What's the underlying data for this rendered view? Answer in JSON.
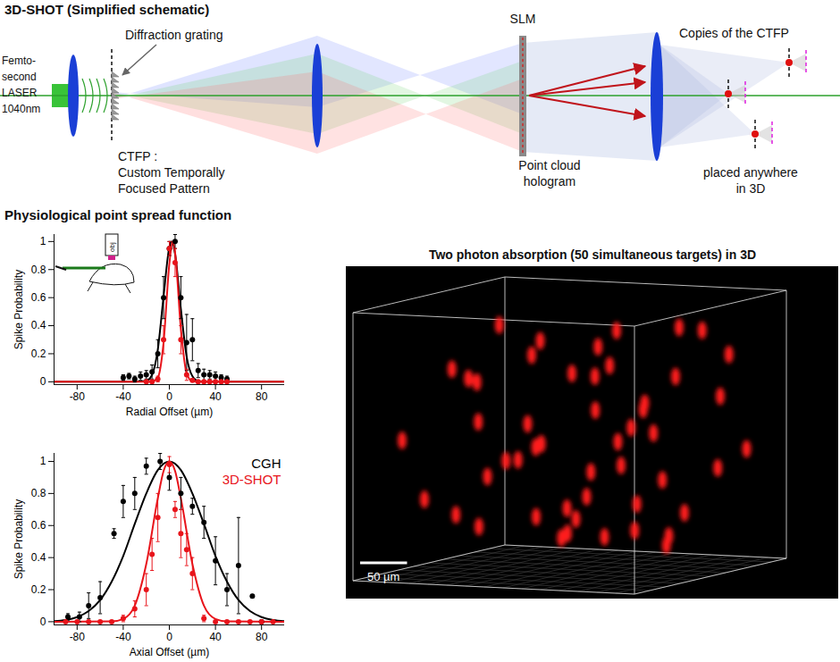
{
  "schematic": {
    "title": "3D-SHOT (Simplified schematic)",
    "laser": [
      "Femto-",
      "second",
      "LASER",
      "1040nm"
    ],
    "grating": "Diffraction grating",
    "ctfp": [
      "CTFP :",
      "Custom Temporally",
      "Focused Pattern"
    ],
    "slm": "SLM",
    "hologram": [
      "Point cloud",
      "hologram"
    ],
    "copies": "Copies of the CTFP",
    "placed": [
      "placed anywhere",
      "in 3D"
    ]
  },
  "section_title": "Physiological point spread function",
  "inset_label": "obj",
  "chart_data": [
    {
      "type": "scatter",
      "xlabel": "Radial Offset (µm)",
      "ylabel": "Spike Probability",
      "xlim": [
        -100,
        100
      ],
      "xticks": [
        -80,
        -40,
        0,
        40,
        80
      ],
      "ylim": [
        -0.02,
        1.05
      ],
      "yticks": [
        0,
        0.2,
        0.4,
        0.6,
        0.8,
        1
      ],
      "series": [
        {
          "type": "line",
          "color": "#000000",
          "x": [
            -100,
            -30,
            -20,
            -15,
            -10,
            -5,
            0,
            2,
            5,
            10,
            15,
            20,
            25,
            30,
            100
          ],
          "values": [
            0,
            0,
            0.007,
            0.05,
            0.23,
            0.61,
            0.96,
            1,
            0.91,
            0.52,
            0.18,
            0.04,
            0.005,
            0,
            0
          ]
        },
        {
          "type": "line",
          "color": "#e8141b",
          "x": [
            -100,
            -20,
            -15,
            -10,
            -5,
            0,
            3,
            5,
            10,
            15,
            20,
            30,
            100
          ],
          "values": [
            0,
            0,
            0.002,
            0.03,
            0.28,
            0.84,
            1,
            0.92,
            0.38,
            0.06,
            0.003,
            0,
            0
          ]
        },
        {
          "type": "scatter",
          "color": "#000000",
          "x": [
            -40,
            -35,
            -30,
            -25,
            -20,
            -15,
            -10,
            -5,
            0,
            5,
            10,
            15,
            20,
            25,
            30,
            35,
            40,
            45,
            50
          ],
          "values": [
            0.03,
            0.04,
            0.02,
            0.04,
            0.05,
            0.07,
            0.2,
            0.6,
            0.95,
            1.0,
            0.6,
            0.28,
            0.3,
            0.08,
            0.05,
            0.05,
            0.04,
            0.03,
            0.02
          ],
          "errors": [
            0.02,
            0.02,
            0.02,
            0.03,
            0.03,
            0.05,
            0.1,
            0.15,
            0.05,
            0.05,
            0.15,
            0.2,
            0.15,
            0.05,
            0.04,
            0.03,
            0.03,
            0.02,
            0.02
          ]
        },
        {
          "type": "scatter",
          "color": "#e8141b",
          "x": [
            -20,
            -15,
            -10,
            -5,
            0,
            5,
            10,
            15,
            20,
            25,
            30,
            35,
            40,
            45,
            50
          ],
          "values": [
            0,
            0,
            0.02,
            0.3,
            0.95,
            0.85,
            0.3,
            0.05,
            0.01,
            0,
            0,
            0,
            0,
            0,
            0
          ],
          "errors": [
            0,
            0,
            0.02,
            0.1,
            0.05,
            0.1,
            0.1,
            0.04,
            0.01,
            0,
            0,
            0,
            0,
            0,
            0
          ]
        }
      ]
    },
    {
      "type": "scatter",
      "xlabel": "Axial Offset (µm)",
      "ylabel": "Spike Probability",
      "xlim": [
        -100,
        100
      ],
      "xticks": [
        -80,
        -40,
        0,
        40,
        80
      ],
      "ylim": [
        -0.02,
        1.05
      ],
      "yticks": [
        0,
        0.2,
        0.4,
        0.6,
        0.8,
        1
      ],
      "legend": "top-right",
      "series": [
        {
          "type": "line",
          "color": "#000000",
          "x": [
            -100,
            -90,
            -80,
            -70,
            -60,
            -50,
            -40,
            -30,
            -20,
            -10,
            0,
            10,
            20,
            30,
            40,
            50,
            60,
            70,
            80,
            90,
            100
          ],
          "values": [
            0.004,
            0.011,
            0.029,
            0.066,
            0.135,
            0.25,
            0.41,
            0.61,
            0.8,
            0.946,
            1,
            0.946,
            0.8,
            0.61,
            0.41,
            0.25,
            0.135,
            0.066,
            0.029,
            0.011,
            0.004
          ]
        },
        {
          "type": "line",
          "color": "#e8141b",
          "x": [
            -100,
            -50,
            -40,
            -30,
            -20,
            -10,
            -5,
            0,
            5,
            10,
            20,
            30,
            40,
            50,
            100
          ],
          "values": [
            0,
            0.002,
            0.017,
            0.1,
            0.36,
            0.77,
            0.94,
            1,
            0.94,
            0.77,
            0.36,
            0.1,
            0.017,
            0.002,
            0
          ]
        },
        {
          "type": "scatter",
          "name": "CGH",
          "color": "#000000",
          "x": [
            -88,
            -78,
            -70,
            -60,
            -48,
            -40,
            -30,
            -20,
            -8,
            0,
            10,
            20,
            30,
            40,
            50,
            60,
            72,
            80
          ],
          "values": [
            0.03,
            0.03,
            0.1,
            0.15,
            0.55,
            0.75,
            0.8,
            0.97,
            1.0,
            0.9,
            0.8,
            0.72,
            0.62,
            0.38,
            0.2,
            0.35,
            0.16,
            0.0
          ],
          "errors": [
            0.02,
            0.03,
            0.08,
            0.1,
            0.03,
            0.1,
            0.1,
            0.05,
            0.05,
            0.08,
            0.1,
            0.05,
            0.1,
            0.15,
            0.1,
            0.3,
            0.01,
            0.0
          ]
        },
        {
          "type": "scatter",
          "name": "3D-SHOT",
          "color": "#e8141b",
          "x": [
            -90,
            -80,
            -70,
            -60,
            -50,
            -40,
            -30,
            -20,
            -15,
            -10,
            0,
            5,
            10,
            15,
            20,
            30,
            40,
            50,
            60,
            70,
            80,
            90
          ],
          "values": [
            0,
            0,
            0,
            0,
            0,
            0.02,
            0.08,
            0.2,
            0.42,
            0.65,
            0.98,
            0.7,
            0.55,
            0.45,
            0.3,
            0.02,
            0,
            0,
            0,
            0,
            0,
            0
          ],
          "errors": [
            0,
            0,
            0,
            0,
            0,
            0.02,
            0.05,
            0.1,
            0.1,
            0.15,
            0.05,
            0.05,
            0.15,
            0.1,
            0.1,
            0.02,
            0,
            0,
            0,
            0,
            0,
            0
          ]
        }
      ]
    }
  ],
  "volume": {
    "title": "Two photon absorption (50 simultaneous targets) in 3D",
    "xlim": [
      0,
      300
    ],
    "ylim": [
      0,
      200
    ],
    "zlim": [
      0,
      300
    ],
    "targets": [
      [
        20,
        40,
        150
      ],
      [
        35,
        120,
        200
      ],
      [
        60,
        20,
        90
      ],
      [
        70,
        160,
        240
      ],
      [
        85,
        60,
        170
      ],
      [
        95,
        100,
        120
      ],
      [
        110,
        30,
        60
      ],
      [
        120,
        140,
        210
      ],
      [
        130,
        80,
        140
      ],
      [
        140,
        180,
        100
      ],
      [
        150,
        50,
        250
      ],
      [
        160,
        110,
        80
      ],
      [
        170,
        20,
        180
      ],
      [
        175,
        150,
        150
      ],
      [
        185,
        90,
        220
      ],
      [
        195,
        130,
        40
      ],
      [
        205,
        60,
        120
      ],
      [
        210,
        170,
        260
      ],
      [
        220,
        10,
        90
      ],
      [
        230,
        100,
        190
      ],
      [
        240,
        140,
        60
      ],
      [
        250,
        40,
        160
      ],
      [
        255,
        180,
        230
      ],
      [
        265,
        80,
        110
      ],
      [
        275,
        120,
        270
      ],
      [
        285,
        30,
        200
      ],
      [
        290,
        160,
        130
      ],
      [
        45,
        80,
        60
      ],
      [
        55,
        180,
        120
      ],
      [
        75,
        100,
        270
      ],
      [
        100,
        170,
        40
      ],
      [
        115,
        10,
        230
      ],
      [
        125,
        120,
        30
      ],
      [
        145,
        140,
        170
      ],
      [
        155,
        10,
        140
      ],
      [
        180,
        60,
        50
      ],
      [
        190,
        190,
        200
      ],
      [
        200,
        100,
        270
      ],
      [
        215,
        130,
        150
      ],
      [
        225,
        60,
        240
      ],
      [
        235,
        190,
        100
      ],
      [
        245,
        110,
        30
      ],
      [
        260,
        10,
        60
      ],
      [
        270,
        150,
        190
      ],
      [
        280,
        70,
        50
      ],
      [
        30,
        140,
        90
      ],
      [
        65,
        50,
        230
      ],
      [
        90,
        130,
        50
      ],
      [
        165,
        170,
        60
      ],
      [
        245,
        20,
        270
      ]
    ],
    "scale_bar": {
      "value": 50,
      "label": "50 µm"
    }
  }
}
